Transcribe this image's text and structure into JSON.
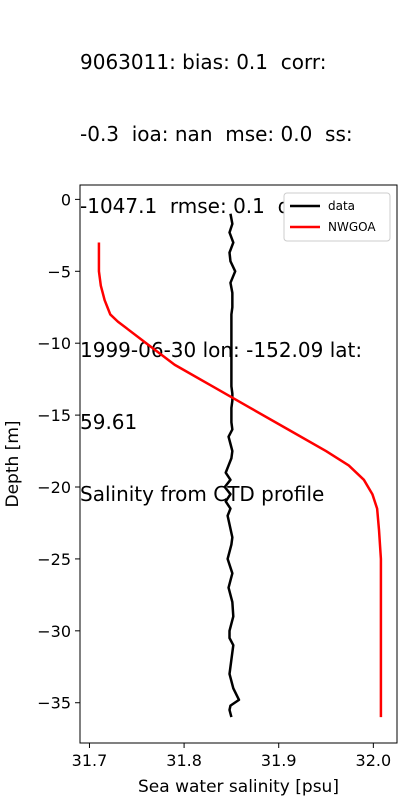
{
  "chart_data": {
    "type": "line",
    "title_lines": [
      "9063011: bias: 0.1  corr:",
      "-0.3  ioa: nan  mse: 0.0  ss:",
      "-1047.1  rmse: 0.1  dist: 0.8",
      "",
      "1999-06-30 lon: -152.09 lat:",
      "59.61",
      "Salinity from CTD profile"
    ],
    "xlabel": "Sea water salinity [psu]",
    "ylabel": "Depth [m]",
    "xlim": [
      31.69,
      32.025
    ],
    "ylim": [
      -37.8,
      1.0
    ],
    "xticks": [
      31.7,
      31.8,
      31.9,
      32.0
    ],
    "xtick_labels": [
      "31.7",
      "31.8",
      "31.9",
      "32.0"
    ],
    "yticks": [
      0,
      -5,
      -10,
      -15,
      -20,
      -25,
      -30,
      -35
    ],
    "ytick_labels": [
      "0",
      "−5",
      "−10",
      "−15",
      "−20",
      "−25",
      "−30",
      "−35"
    ],
    "legend_position": "upper right",
    "grid": false,
    "series": [
      {
        "name": "data",
        "color": "#000000",
        "x": [
          31.849,
          31.851,
          31.848,
          31.852,
          31.848,
          31.849,
          31.854,
          31.849,
          31.851,
          31.851,
          31.851,
          31.85,
          31.85,
          31.85,
          31.85,
          31.85,
          31.85,
          31.85,
          31.85,
          31.85,
          31.85,
          31.85,
          31.851,
          31.851,
          31.85,
          31.85,
          31.85,
          31.851,
          31.847,
          31.849,
          31.851,
          31.85,
          31.847,
          31.844,
          31.849,
          31.843,
          31.849,
          31.844,
          31.849,
          31.846,
          31.851,
          31.85,
          31.846,
          31.851,
          31.849,
          31.847,
          31.851,
          31.852,
          31.848,
          31.848,
          31.852,
          31.85,
          31.848,
          31.852,
          31.858,
          31.849,
          31.848,
          31.85
        ],
        "y": [
          -1.0,
          -1.7,
          -2.3,
          -3.0,
          -3.7,
          -4.3,
          -5.0,
          -5.8,
          -6.5,
          -7.0,
          -7.5,
          -8.0,
          -8.5,
          -9.0,
          -9.5,
          -10.0,
          -10.5,
          -11.0,
          -11.5,
          -12.0,
          -12.5,
          -13.0,
          -13.5,
          -14.0,
          -14.5,
          -15.0,
          -15.5,
          -16.0,
          -16.5,
          -17.0,
          -17.5,
          -18.0,
          -18.5,
          -19.0,
          -19.5,
          -20.0,
          -20.5,
          -21.0,
          -21.5,
          -22.0,
          -23.5,
          -24.0,
          -25.0,
          -26.0,
          -26.5,
          -27.0,
          -28.0,
          -29.0,
          -30.0,
          -30.5,
          -31.0,
          -32.0,
          -33.0,
          -34.0,
          -34.8,
          -35.2,
          -35.5,
          -36.0
        ]
      },
      {
        "name": "NWGOA",
        "color": "#ff0000",
        "x": [
          31.71,
          31.71,
          31.71,
          31.711,
          31.712,
          31.714,
          31.716,
          31.719,
          31.722,
          31.73,
          31.74,
          31.76,
          31.79,
          31.83,
          31.87,
          31.91,
          31.95,
          31.974,
          31.99,
          31.999,
          32.004,
          32.006,
          32.008,
          32.008,
          32.008,
          32.008,
          32.008
        ],
        "y": [
          -3.0,
          -4.0,
          -5.0,
          -5.5,
          -6.0,
          -6.5,
          -7.0,
          -7.5,
          -8.0,
          -8.5,
          -9.0,
          -10.0,
          -11.5,
          -13.0,
          -14.5,
          -16.0,
          -17.5,
          -18.5,
          -19.5,
          -20.5,
          -21.5,
          -23.0,
          -25.0,
          -28.0,
          -31.0,
          -34.0,
          -36.0
        ]
      }
    ]
  },
  "colors": {
    "axis": "#000000",
    "data_line": "#000000",
    "model_line": "#ff0000"
  }
}
